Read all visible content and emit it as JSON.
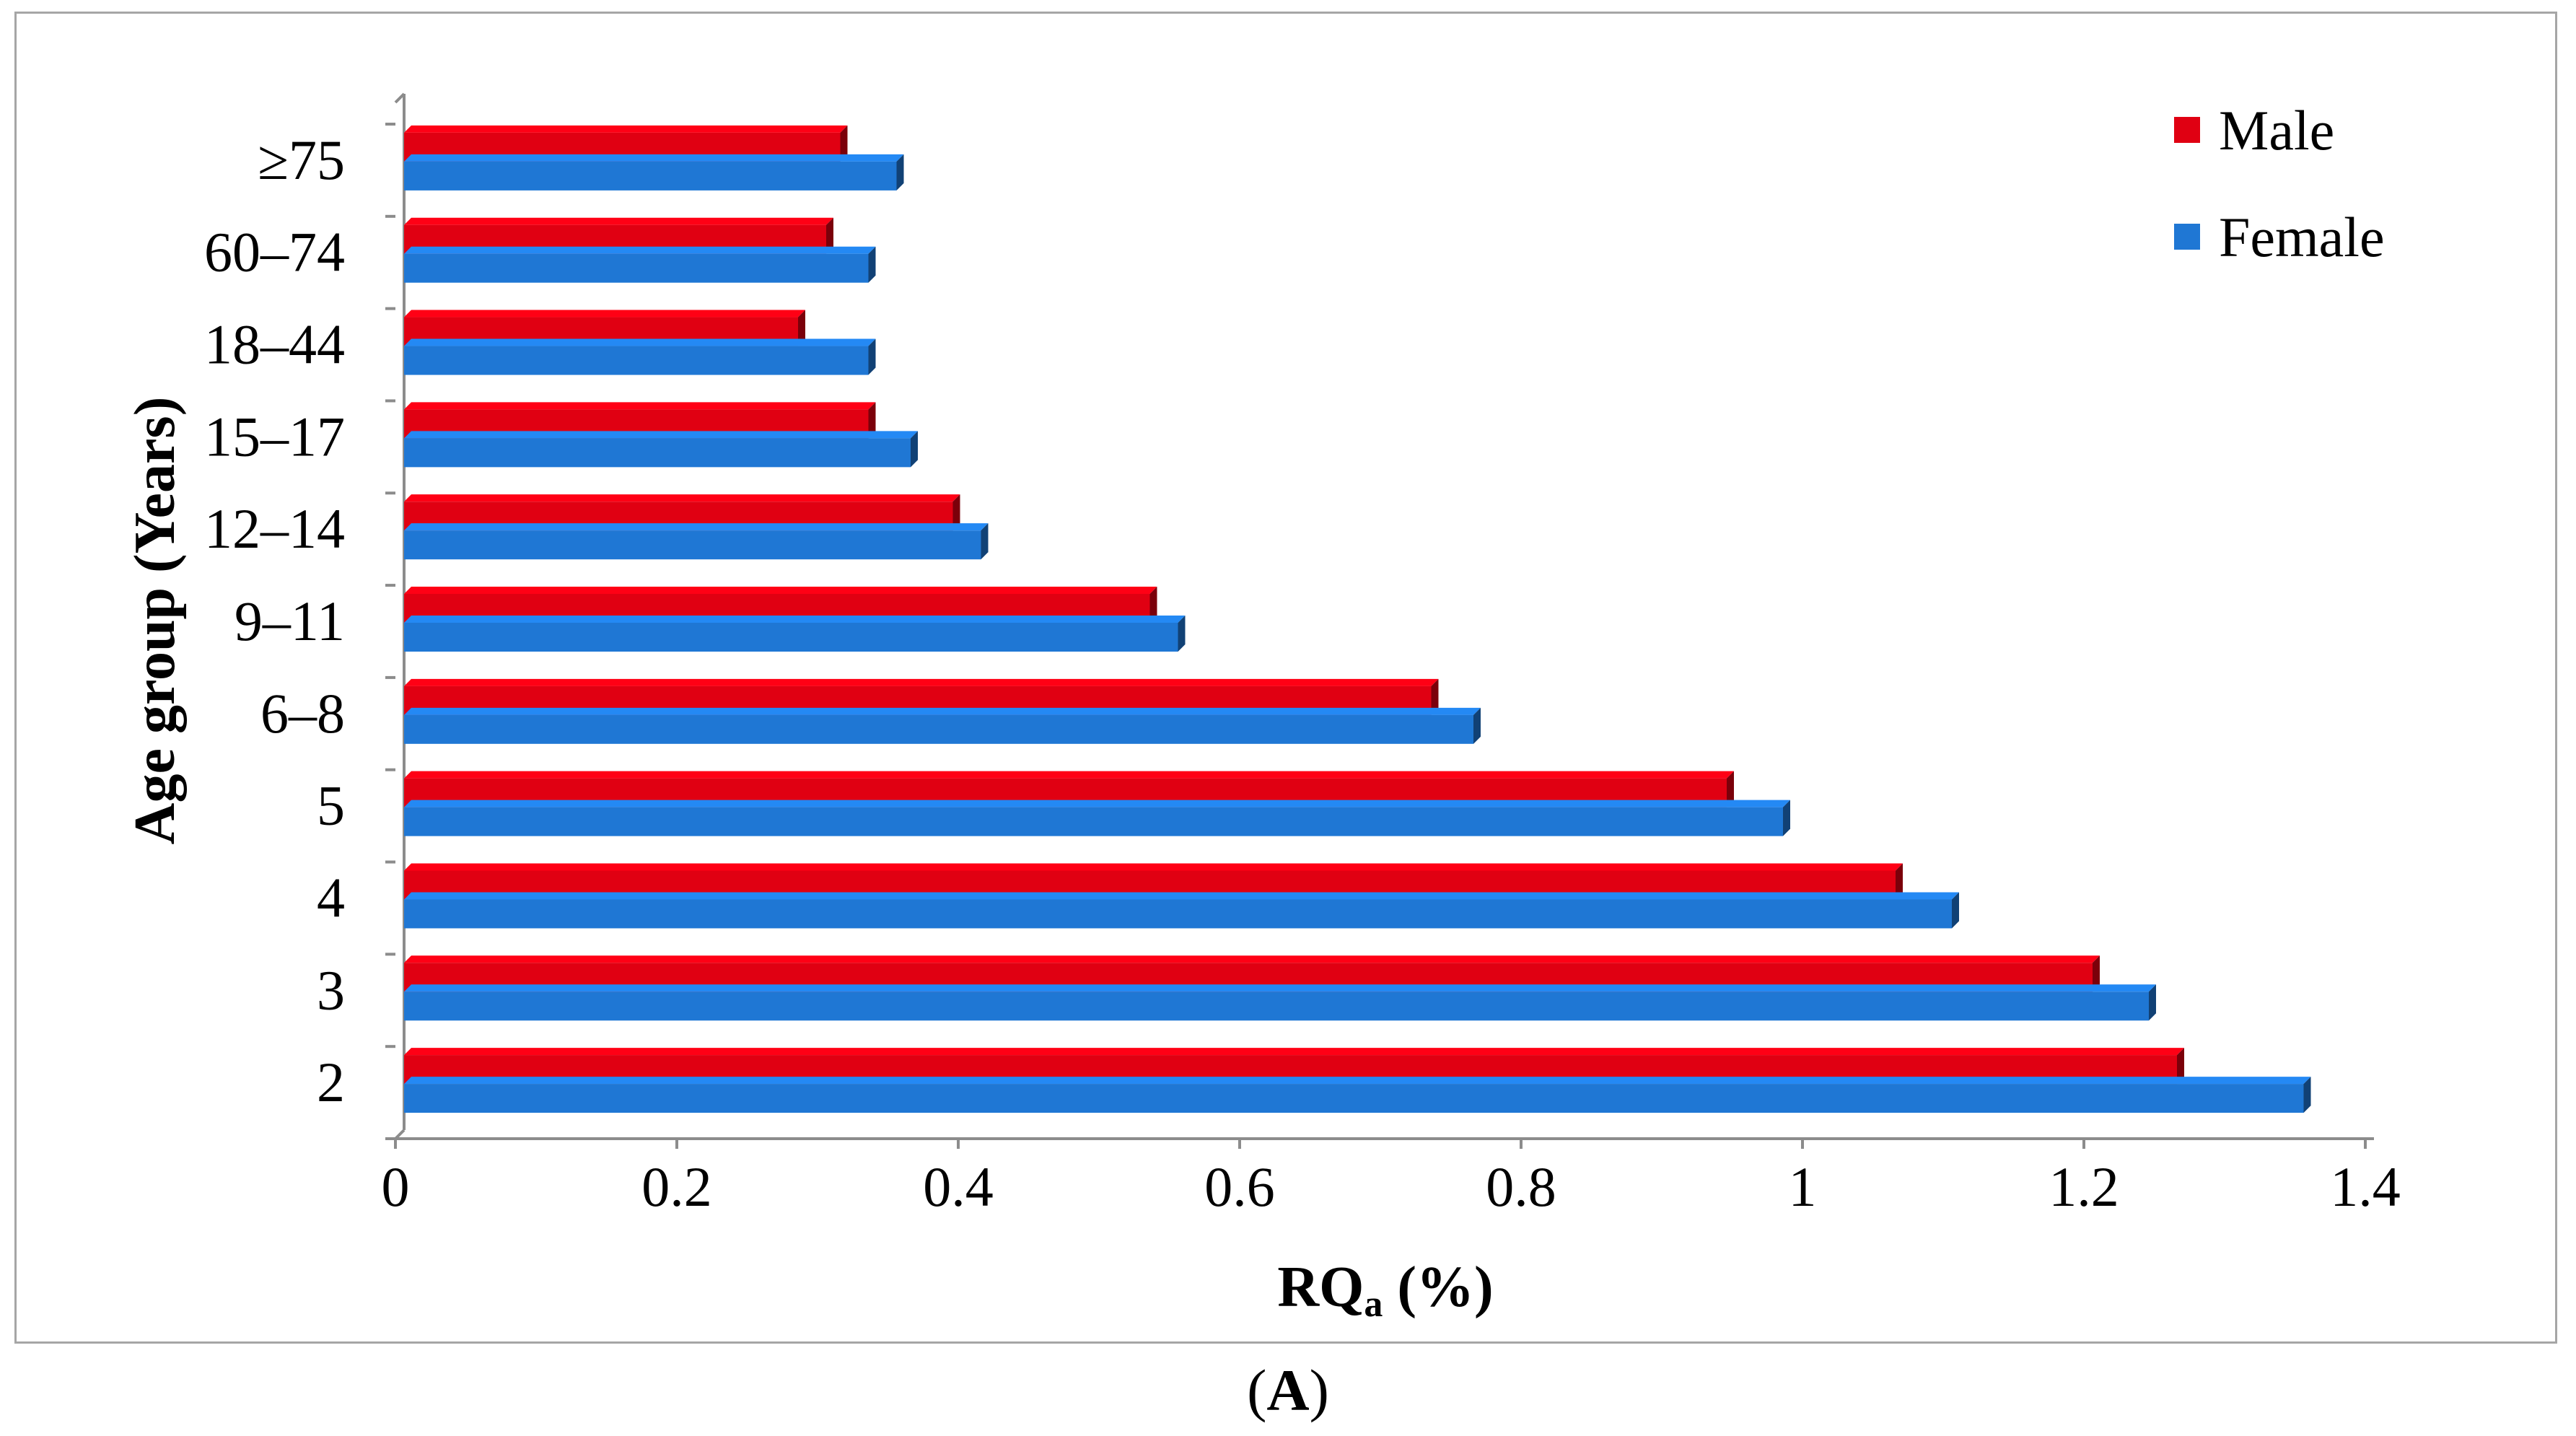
{
  "chart_data": {
    "type": "bar",
    "orientation": "horizontal",
    "categories": [
      "2",
      "3",
      "4",
      "5",
      "6–8",
      "9–11",
      "12–14",
      "15–17",
      "18–44",
      "60–74",
      "≥75"
    ],
    "series": [
      {
        "name": "Male",
        "color": "#e00012",
        "values": [
          1.26,
          1.2,
          1.06,
          0.94,
          0.73,
          0.53,
          0.39,
          0.33,
          0.28,
          0.3,
          0.31
        ]
      },
      {
        "name": "Female",
        "color": "#1f77d4",
        "values": [
          1.35,
          1.24,
          1.1,
          0.98,
          0.76,
          0.55,
          0.41,
          0.36,
          0.33,
          0.33,
          0.35
        ]
      }
    ],
    "xlabel_main": "RQ",
    "xlabel_sub": "a",
    "xlabel_suffix": " (%)",
    "ylabel": "Age group (Years)",
    "xlim": [
      0,
      1.4
    ],
    "xticks": [
      0,
      0.2,
      0.4,
      0.6,
      0.8,
      1,
      1.2,
      1.4
    ],
    "legend_position": "top-right",
    "grid": false
  },
  "panel_label": {
    "open": "(",
    "letter": "A",
    "close": ")"
  }
}
